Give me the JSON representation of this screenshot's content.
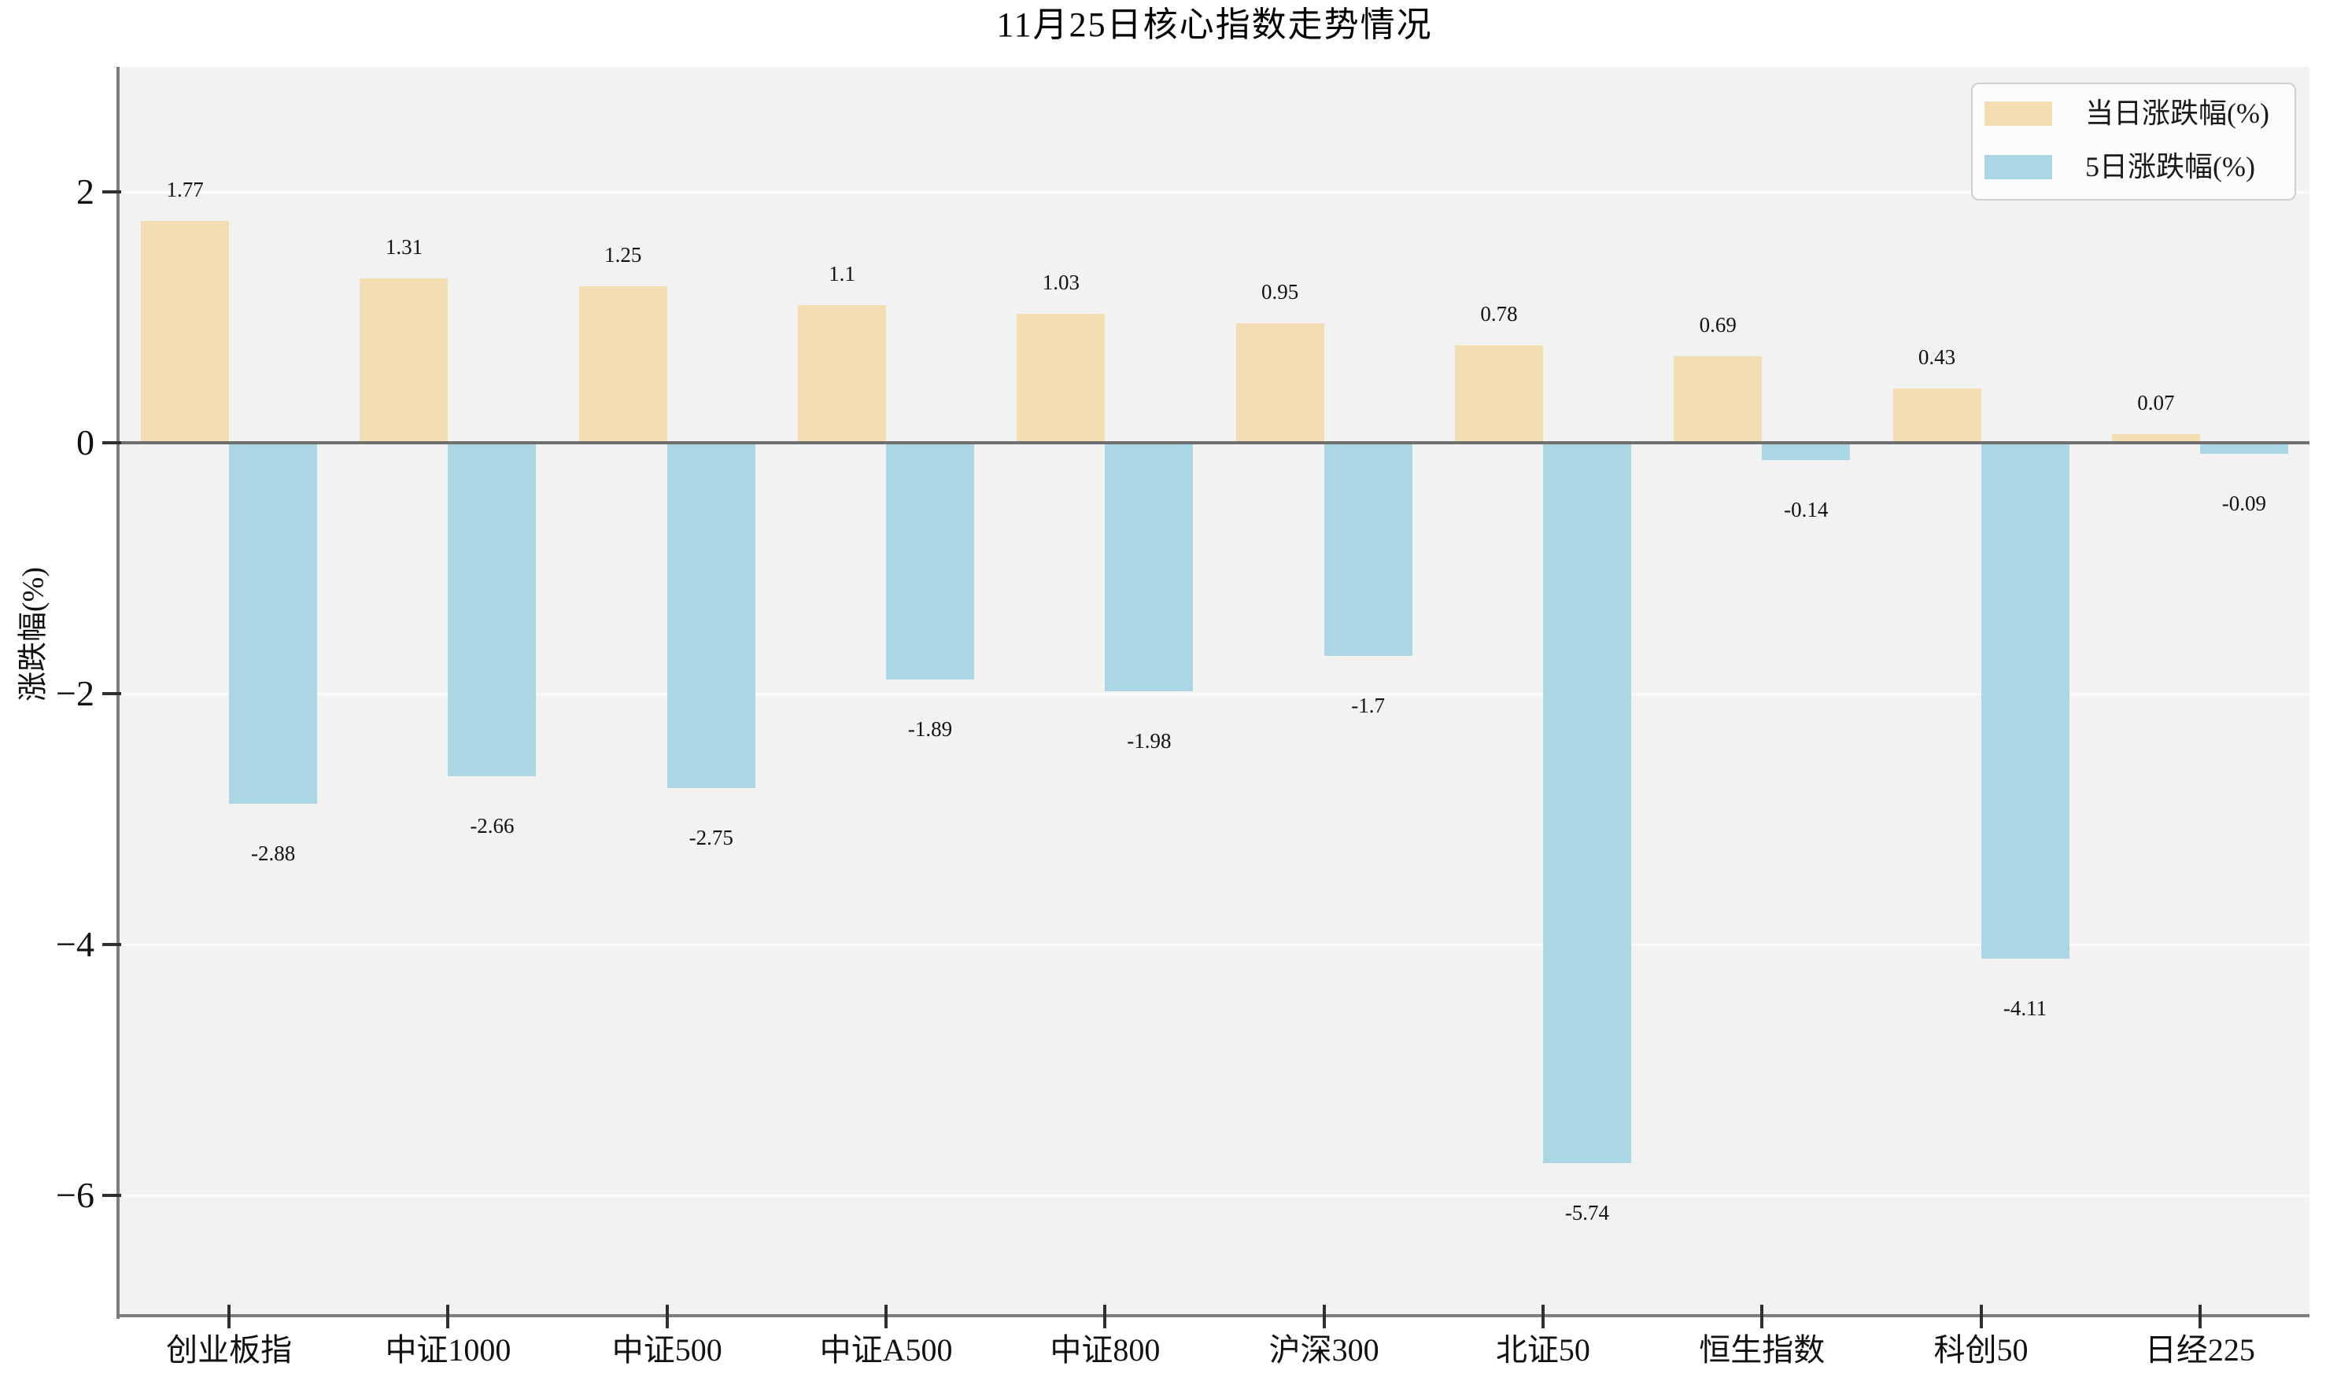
{
  "title": "11月25日核心指数走势情况",
  "chart_data": {
    "type": "bar",
    "title": "11月25日核心指数走势情况",
    "xlabel": "",
    "ylabel": "涨跌幅(%)",
    "categories": [
      "创业板指",
      "中证1000",
      "中证500",
      "中证A500",
      "中证800",
      "沪深300",
      "北证50",
      "恒生指数",
      "科创50",
      "日经225"
    ],
    "series": [
      {
        "name": "当日涨跌幅(%)",
        "color": "#f3deb4",
        "values": [
          1.77,
          1.31,
          1.25,
          1.1,
          1.03,
          0.95,
          0.78,
          0.69,
          0.43,
          0.07
        ],
        "labels": [
          "1.77",
          "1.31",
          "1.25",
          "1.1",
          "1.03",
          "0.95",
          "0.78",
          "0.69",
          "0.43",
          "0.07"
        ]
      },
      {
        "name": "5日涨跌幅(%)",
        "color": "#abd7e5",
        "values": [
          -2.88,
          -2.66,
          -2.75,
          -1.89,
          -1.98,
          -1.7,
          -5.74,
          -0.14,
          -4.11,
          -0.09
        ],
        "labels": [
          "-2.88",
          "-2.66",
          "-2.75",
          "-1.89",
          "-1.98",
          "-1.7",
          "-5.74",
          "-0.14",
          "-4.11",
          "-0.09"
        ]
      }
    ],
    "yticks": {
      "values": [
        2,
        0,
        -2,
        -4,
        -6
      ],
      "labels": [
        "2",
        "0",
        "−2",
        "−4",
        "−6"
      ]
    },
    "ylim": [
      -7.0,
      3.0
    ],
    "grid": "horizontal",
    "legend_position": "upper right",
    "zero_line": true
  },
  "colors": {
    "bar_daily": "#f3deb4",
    "bar_5day": "#abd7e5",
    "plot_background": "#f2f2f2",
    "figure_background": "#ffffff",
    "axis_spine": "#7d7d7d",
    "zero_line": "#6f6f6f",
    "gridline": "#fbfbfb"
  }
}
